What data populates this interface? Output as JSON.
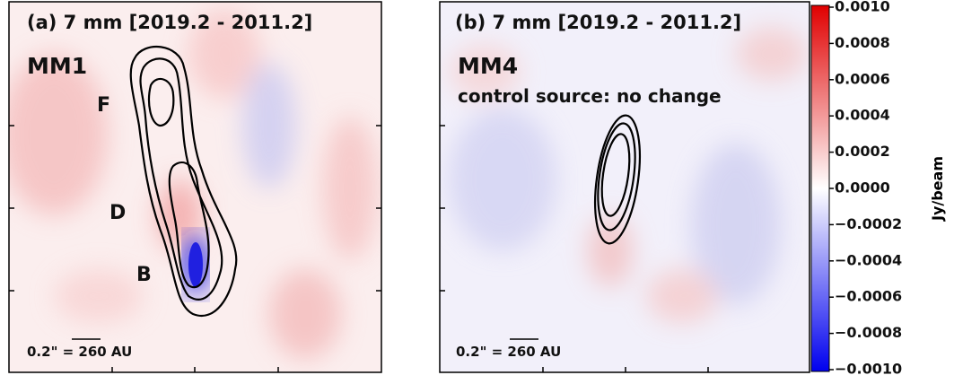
{
  "panels": [
    {
      "title": "(a) 7 mm [2019.2 - 2011.2]",
      "source": "MM1",
      "labels": [
        "F",
        "D",
        "B"
      ],
      "scale_bar": "0.2\" = 260 AU"
    },
    {
      "title": "(b) 7 mm [2019.2 - 2011.2]",
      "source": "MM4",
      "note": "control source: no change",
      "scale_bar": "0.2\" = 260 AU"
    }
  ],
  "colorbar": {
    "label": "Jy/beam",
    "ticks": [
      {
        "value": 0.001,
        "label": "0.0010"
      },
      {
        "value": 0.0008,
        "label": "0.0008"
      },
      {
        "value": 0.0006,
        "label": "0.0006"
      },
      {
        "value": 0.0004,
        "label": "0.0004"
      },
      {
        "value": 0.0002,
        "label": "0.0002"
      },
      {
        "value": 0,
        "label": "0.0000"
      },
      {
        "value": -0.0002,
        "label": "−0.0002"
      },
      {
        "value": -0.0004,
        "label": "−0.0004"
      },
      {
        "value": -0.0006,
        "label": "−0.0006"
      },
      {
        "value": -0.0008,
        "label": "−0.0008"
      },
      {
        "value": -0.001,
        "label": "−0.0010"
      }
    ]
  }
}
